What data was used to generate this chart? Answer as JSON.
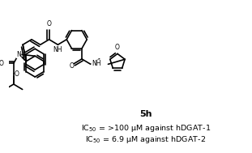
{
  "title": "5h",
  "title_fontsize": 8,
  "title_fontweight": "bold",
  "line1": "IC$_{50}$ = >100 μM against hDGAT-1",
  "line2": "IC$_{50}$ = 6.9 μM against hDGAT-2",
  "text_fontsize": 6.8,
  "bg_color": "#ffffff",
  "text_color": "#000000",
  "fig_width": 3.11,
  "fig_height": 1.89,
  "dpi": 100
}
